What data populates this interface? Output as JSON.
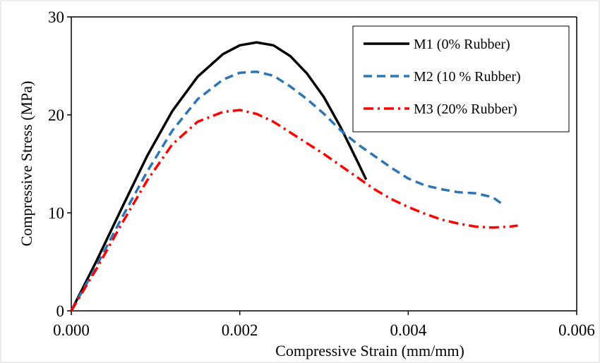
{
  "chart_data": {
    "type": "line",
    "title": "",
    "xlabel": "Compressive Strain (mm/mm)",
    "ylabel": "Compressive Stress (MPa)",
    "xlim": [
      0,
      0.006
    ],
    "ylim": [
      0,
      30
    ],
    "x_ticks": [
      "0.000",
      "0.002",
      "0.004",
      "0.006"
    ],
    "y_ticks": [
      "0",
      "10",
      "20",
      "30"
    ],
    "grid": false,
    "legend_position": "top-right",
    "series": [
      {
        "name": "M1 (0% Rubber)",
        "color": "#000000",
        "line_style": "solid",
        "points": [
          [
            0.0,
            0.0
          ],
          [
            0.0003,
            5.1
          ],
          [
            0.0006,
            10.5
          ],
          [
            0.0009,
            15.8
          ],
          [
            0.0012,
            20.4
          ],
          [
            0.0015,
            23.9
          ],
          [
            0.0018,
            26.2
          ],
          [
            0.002,
            27.1
          ],
          [
            0.0022,
            27.4
          ],
          [
            0.0024,
            27.1
          ],
          [
            0.0026,
            26.0
          ],
          [
            0.0028,
            24.2
          ],
          [
            0.003,
            21.8
          ],
          [
            0.0032,
            18.7
          ],
          [
            0.0034,
            15.2
          ],
          [
            0.0035,
            13.4
          ]
        ]
      },
      {
        "name": "M2 (10 % Rubber)",
        "color": "#2e75b6",
        "line_style": "dashed",
        "points": [
          [
            0.0,
            0.0
          ],
          [
            0.0003,
            4.6
          ],
          [
            0.0006,
            9.5
          ],
          [
            0.0009,
            14.2
          ],
          [
            0.0012,
            18.4
          ],
          [
            0.0015,
            21.6
          ],
          [
            0.0018,
            23.6
          ],
          [
            0.002,
            24.3
          ],
          [
            0.0022,
            24.4
          ],
          [
            0.0024,
            24.0
          ],
          [
            0.0026,
            22.9
          ],
          [
            0.0028,
            21.6
          ],
          [
            0.003,
            20.1
          ],
          [
            0.0032,
            18.4
          ],
          [
            0.0034,
            17.0
          ],
          [
            0.0036,
            15.8
          ],
          [
            0.0038,
            14.6
          ],
          [
            0.004,
            13.5
          ],
          [
            0.0042,
            12.8
          ],
          [
            0.0044,
            12.4
          ],
          [
            0.0046,
            12.1
          ],
          [
            0.0048,
            12.0
          ],
          [
            0.005,
            11.6
          ],
          [
            0.0051,
            11.0
          ]
        ]
      },
      {
        "name": "M3 (20% Rubber)",
        "color": "#ff0000",
        "line_style": "dash-dot",
        "points": [
          [
            0.0,
            0.0
          ],
          [
            0.0003,
            4.3
          ],
          [
            0.0006,
            8.9
          ],
          [
            0.0009,
            13.3
          ],
          [
            0.0012,
            17.0
          ],
          [
            0.0015,
            19.3
          ],
          [
            0.0018,
            20.3
          ],
          [
            0.002,
            20.5
          ],
          [
            0.0022,
            20.1
          ],
          [
            0.0024,
            19.3
          ],
          [
            0.0026,
            18.2
          ],
          [
            0.0028,
            17.1
          ],
          [
            0.003,
            16.0
          ],
          [
            0.0032,
            14.8
          ],
          [
            0.0034,
            13.6
          ],
          [
            0.0036,
            12.4
          ],
          [
            0.0038,
            11.4
          ],
          [
            0.004,
            10.6
          ],
          [
            0.0042,
            9.9
          ],
          [
            0.0044,
            9.3
          ],
          [
            0.0046,
            8.9
          ],
          [
            0.0048,
            8.6
          ],
          [
            0.005,
            8.5
          ],
          [
            0.0052,
            8.6
          ],
          [
            0.0053,
            8.7
          ]
        ]
      }
    ]
  }
}
